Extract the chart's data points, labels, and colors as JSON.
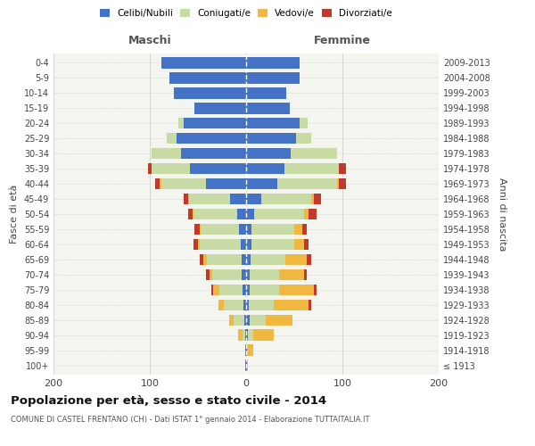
{
  "age_groups": [
    "100+",
    "95-99",
    "90-94",
    "85-89",
    "80-84",
    "75-79",
    "70-74",
    "65-69",
    "60-64",
    "55-59",
    "50-54",
    "45-49",
    "40-44",
    "35-39",
    "30-34",
    "25-29",
    "20-24",
    "15-19",
    "10-14",
    "5-9",
    "0-4"
  ],
  "birth_years": [
    "≤ 1913",
    "1914-1918",
    "1919-1923",
    "1924-1928",
    "1929-1933",
    "1934-1938",
    "1939-1943",
    "1944-1948",
    "1949-1953",
    "1954-1958",
    "1959-1963",
    "1964-1968",
    "1969-1973",
    "1974-1978",
    "1979-1983",
    "1984-1988",
    "1989-1993",
    "1994-1998",
    "1999-2003",
    "2004-2008",
    "2009-2013"
  ],
  "maschi": {
    "celibi": [
      1,
      1,
      1,
      2,
      3,
      4,
      5,
      5,
      6,
      7,
      9,
      17,
      42,
      58,
      68,
      72,
      65,
      54,
      75,
      80,
      88
    ],
    "coniugati": [
      0,
      0,
      3,
      11,
      20,
      24,
      30,
      36,
      42,
      40,
      46,
      42,
      46,
      40,
      30,
      10,
      5,
      0,
      0,
      0,
      0
    ],
    "vedovi": [
      0,
      0,
      4,
      5,
      6,
      6,
      3,
      3,
      2,
      1,
      1,
      1,
      2,
      0,
      0,
      0,
      0,
      0,
      0,
      0,
      0
    ],
    "divorziati": [
      0,
      0,
      0,
      0,
      0,
      2,
      4,
      4,
      5,
      6,
      4,
      5,
      4,
      4,
      0,
      0,
      0,
      0,
      0,
      0,
      0
    ]
  },
  "femmine": {
    "nubili": [
      1,
      1,
      2,
      4,
      3,
      4,
      4,
      5,
      6,
      6,
      8,
      16,
      32,
      40,
      46,
      52,
      56,
      45,
      42,
      56,
      56
    ],
    "coniugate": [
      0,
      0,
      5,
      16,
      26,
      30,
      30,
      36,
      44,
      44,
      52,
      52,
      62,
      56,
      48,
      16,
      8,
      0,
      0,
      0,
      0
    ],
    "vedove": [
      1,
      6,
      22,
      28,
      36,
      36,
      26,
      22,
      10,
      8,
      5,
      2,
      2,
      0,
      0,
      0,
      0,
      0,
      0,
      0,
      0
    ],
    "divorziate": [
      0,
      0,
      0,
      0,
      3,
      3,
      3,
      5,
      5,
      5,
      8,
      8,
      8,
      8,
      0,
      0,
      0,
      0,
      0,
      0,
      0
    ]
  },
  "colors": {
    "celibi": "#4472c4",
    "coniugati": "#c8dba4",
    "vedovi": "#f0b840",
    "divorziati": "#c0392b"
  },
  "xlim": 200,
  "title": "Popolazione per età, sesso e stato civile - 2014",
  "subtitle": "COMUNE DI CASTEL FRENTANO (CH) - Dati ISTAT 1° gennaio 2014 - Elaborazione TUTTAITALIA.IT",
  "ylabel_left": "Fasce di età",
  "ylabel_right": "Anni di nascita",
  "xlabel_maschi": "Maschi",
  "xlabel_femmine": "Femmine",
  "bg_color": "#f5f5f0",
  "grid_color": "#cccccc"
}
